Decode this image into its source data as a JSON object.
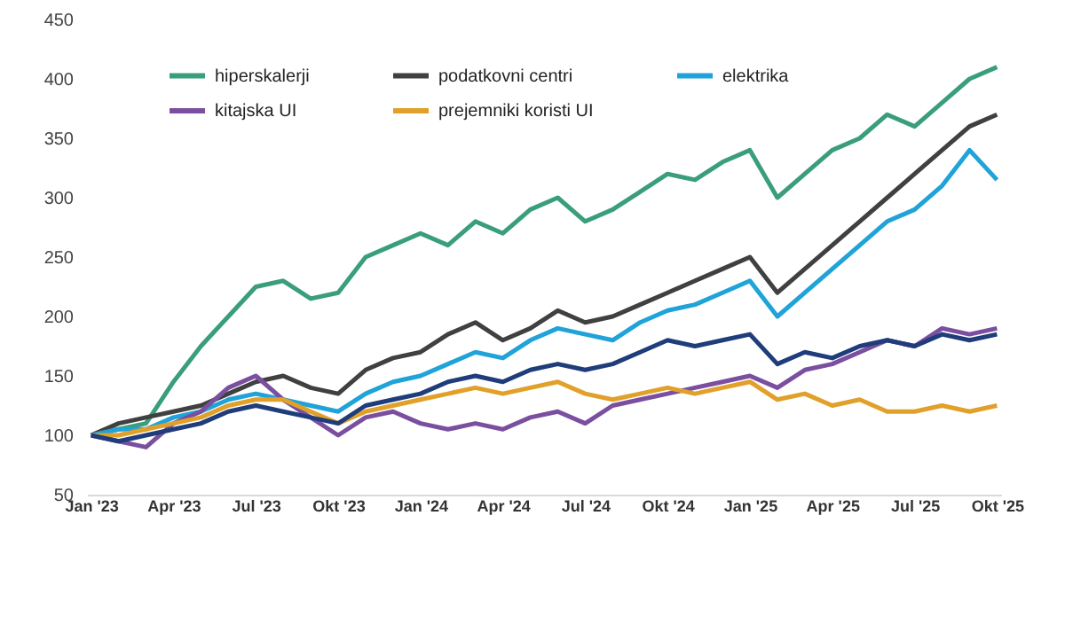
{
  "chart_data": {
    "type": "line",
    "categories": [
      "Jan '23",
      null,
      null,
      "Apr '23",
      null,
      null,
      "Jul '23",
      null,
      null,
      "Okt '23",
      null,
      null,
      "Jan '24",
      null,
      null,
      "Apr '24",
      null,
      null,
      "Jul '24",
      null,
      null,
      "Okt '24",
      null,
      null,
      "Jan '25",
      null,
      null,
      "Apr '25",
      null,
      null,
      "Jul '25",
      null,
      null,
      "Okt '25"
    ],
    "series": [
      {
        "name": "hiperskalerji",
        "color": "#3a9e7e",
        "values": [
          100,
          105,
          110,
          145,
          175,
          200,
          225,
          230,
          215,
          220,
          250,
          260,
          270,
          260,
          280,
          270,
          290,
          300,
          280,
          290,
          305,
          320,
          315,
          330,
          340,
          300,
          320,
          340,
          350,
          370,
          360,
          380,
          400,
          410
        ]
      },
      {
        "name": "podatkovni centri",
        "color": "#404040",
        "values": [
          100,
          110,
          115,
          120,
          125,
          135,
          145,
          150,
          140,
          135,
          155,
          165,
          170,
          185,
          195,
          180,
          190,
          205,
          195,
          200,
          210,
          220,
          230,
          240,
          250,
          220,
          240,
          260,
          280,
          300,
          320,
          340,
          360,
          370
        ]
      },
      {
        "name": "elektrika",
        "color": "#1fa3d8",
        "values": [
          100,
          105,
          105,
          115,
          120,
          130,
          135,
          130,
          125,
          120,
          135,
          145,
          150,
          160,
          170,
          165,
          180,
          190,
          185,
          180,
          195,
          205,
          210,
          220,
          230,
          200,
          220,
          240,
          260,
          280,
          290,
          310,
          340,
          315
        ]
      },
      {
        "name": "kitajska UI",
        "color": "#7b4fa0",
        "values": [
          100,
          95,
          90,
          110,
          120,
          140,
          150,
          130,
          115,
          100,
          115,
          120,
          110,
          105,
          110,
          105,
          115,
          120,
          110,
          125,
          130,
          135,
          140,
          145,
          150,
          140,
          155,
          160,
          170,
          180,
          175,
          190,
          185,
          190
        ]
      },
      {
        "name": "prejemniki koristi UI",
        "color": "#e0a02a",
        "values": [
          100,
          100,
          105,
          110,
          115,
          125,
          130,
          130,
          120,
          110,
          120,
          125,
          130,
          135,
          140,
          135,
          140,
          145,
          135,
          130,
          135,
          140,
          135,
          140,
          145,
          130,
          135,
          125,
          130,
          120,
          120,
          125,
          120,
          125
        ]
      },
      {
        "color": "#1f3d7a",
        "values": [
          100,
          95,
          100,
          105,
          110,
          120,
          125,
          120,
          115,
          110,
          125,
          130,
          135,
          145,
          150,
          145,
          155,
          160,
          155,
          160,
          170,
          180,
          175,
          180,
          185,
          160,
          170,
          165,
          175,
          180,
          175,
          185,
          180,
          185
        ]
      }
    ],
    "ylim": [
      50,
      450
    ],
    "yticks": [
      50,
      100,
      150,
      200,
      250,
      300,
      350,
      400,
      450
    ],
    "grid": false,
    "legend": "top",
    "marker": "none",
    "line_style": "solid"
  }
}
